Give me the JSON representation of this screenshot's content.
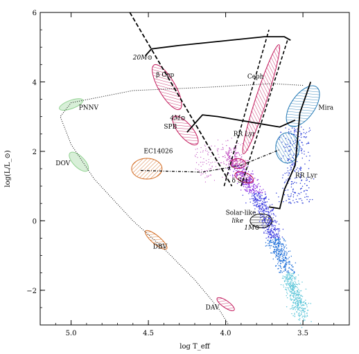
{
  "chart_data": {
    "type": "scatter",
    "xlabel": "log T_eff",
    "ylabel": "log(L/L_⊙)",
    "xlim": [
      5.2,
      3.2
    ],
    "ylim": [
      -3,
      6
    ],
    "x_reversed": true,
    "x_ticks": [
      {
        "value": 5.0,
        "label": "5.0"
      },
      {
        "value": 4.5,
        "label": "4.5"
      },
      {
        "value": 4.0,
        "label": "4.0"
      },
      {
        "value": 3.5,
        "label": "3.5"
      }
    ],
    "y_ticks": [
      {
        "value": -2,
        "label": "−2"
      },
      {
        "value": 0,
        "label": "0"
      },
      {
        "value": 2,
        "label": "2"
      },
      {
        "value": 4,
        "label": "4"
      },
      {
        "value": 6,
        "label": "6"
      }
    ],
    "regions": [
      {
        "name": "PNNV",
        "label": "PNNV",
        "center": [
          5.0,
          3.35
        ],
        "color": "#8fd18f",
        "fill": "solid",
        "label_at": [
          4.95,
          3.2
        ]
      },
      {
        "name": "DOV",
        "label": "DOV",
        "center": [
          4.95,
          1.7
        ],
        "color": "#8fd18f",
        "fill": "solid",
        "label_at": [
          5.1,
          1.6
        ]
      },
      {
        "name": "EC14026",
        "label": "EC14026",
        "center": [
          4.51,
          1.5
        ],
        "color": "#d2691e",
        "fill": "hatch",
        "label_at": [
          4.53,
          1.95
        ]
      },
      {
        "name": "beta-Cep",
        "label": "β Cep",
        "center": [
          4.38,
          3.85
        ],
        "color": "#c2185b",
        "fill": "hatch",
        "label_at": [
          4.45,
          4.15
        ]
      },
      {
        "name": "SPB",
        "label": "SPB",
        "center": [
          4.26,
          2.6
        ],
        "color": "#c2185b",
        "fill": "hatch",
        "label_at": [
          4.4,
          2.65
        ]
      },
      {
        "name": "DBV",
        "label": "DBV",
        "center": [
          4.45,
          -0.55
        ],
        "color": "#d2691e",
        "fill": "hatch",
        "label_at": [
          4.47,
          -0.8
        ]
      },
      {
        "name": "DAV",
        "label": "DAV",
        "center": [
          4.0,
          -2.4
        ],
        "color": "#c2185b",
        "fill": "hatch",
        "label_at": [
          4.13,
          -2.55
        ]
      },
      {
        "name": "Ceph",
        "label": "Ceph",
        "center": [
          3.77,
          3.5
        ],
        "color": "#c2185b",
        "fill": "hatch",
        "label_at": [
          3.86,
          4.1
        ]
      },
      {
        "name": "Mira",
        "label": "Mira",
        "center": [
          3.5,
          3.3
        ],
        "color": "#1f77b4",
        "fill": "hatch",
        "label_at": [
          3.4,
          3.2
        ]
      },
      {
        "name": "RR-Lyr",
        "label": "RR Lyr",
        "center": [
          3.92,
          1.65
        ],
        "color": "#c2185b",
        "fill": "hatch",
        "label_at": [
          3.95,
          2.45
        ]
      },
      {
        "name": "delta-Sct",
        "label": "δ Sct",
        "center": [
          3.88,
          1.25
        ],
        "color": "#c2185b",
        "fill": "hatch",
        "label_at": [
          3.96,
          1.1
        ]
      },
      {
        "name": "solar-like",
        "label": "Solar-like",
        "center": [
          3.77,
          0.0
        ],
        "color": "#000000",
        "fill": "hatch",
        "label_at": [
          4.0,
          0.18
        ]
      },
      {
        "name": "RR-Lyr-2",
        "label": "RR Lyr",
        "center": [
          3.6,
          2.1
        ],
        "color": "#1f77b4",
        "fill": "hatch",
        "label_at": [
          3.55,
          1.25
        ]
      }
    ],
    "annotations": [
      {
        "text": "20M⊙",
        "at": [
          4.6,
          4.65
        ]
      },
      {
        "text": "4M⊙",
        "at": [
          4.36,
          2.9
        ]
      },
      {
        "text": "1M⊙",
        "at": [
          3.88,
          -0.25
        ]
      },
      {
        "text": "like",
        "at": [
          3.96,
          -0.05
        ]
      }
    ],
    "tracks": [
      {
        "name": "20M⊙ track",
        "style": "solid+dashed",
        "points": [
          [
            4.52,
            4.75
          ],
          [
            4.48,
            4.95
          ],
          [
            4.3,
            5.05
          ],
          [
            3.75,
            5.3
          ],
          [
            3.62,
            5.3
          ],
          [
            3.58,
            5.2
          ]
        ]
      },
      {
        "name": "4M⊙ track",
        "style": "solid+dashed",
        "points": [
          [
            4.25,
            2.55
          ],
          [
            4.15,
            3.05
          ],
          [
            4.05,
            3.0
          ],
          [
            3.65,
            2.7
          ],
          [
            3.55,
            2.9
          ]
        ]
      },
      {
        "name": "1M⊙ track",
        "style": "solid",
        "points": [
          [
            3.72,
            0.4
          ],
          [
            3.65,
            0.35
          ],
          [
            3.62,
            0.9
          ],
          [
            3.55,
            1.6
          ],
          [
            3.52,
            3.1
          ],
          [
            3.45,
            4.0
          ]
        ]
      }
    ]
  }
}
